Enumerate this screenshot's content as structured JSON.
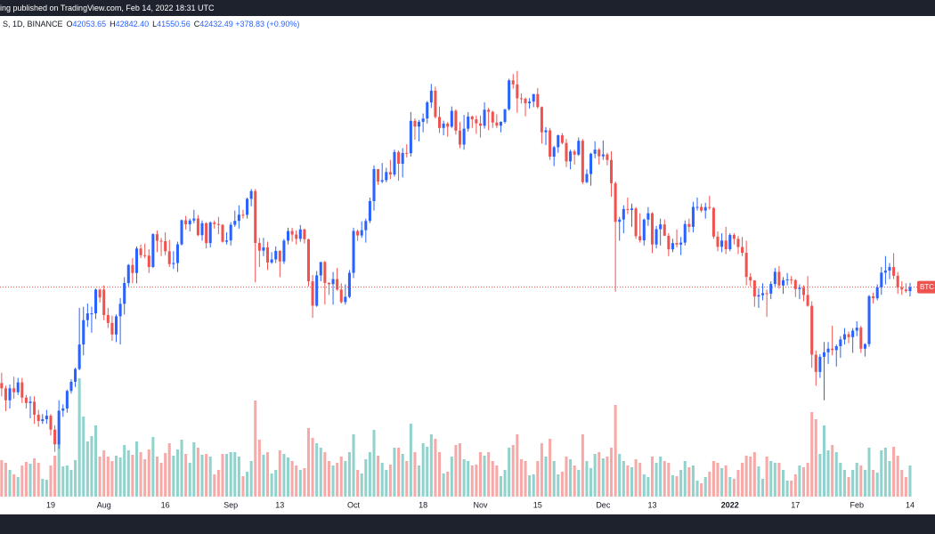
{
  "chart_data": {
    "type": "candlestick",
    "header_text": "ing published on TradingView.com, Feb 14, 2022 18:31 UTC",
    "symbol_text": "S, 1D, BINANCE",
    "ohlc": [
      {
        "key": "O",
        "text": "42053.65"
      },
      {
        "key": "H",
        "text": "42842.40"
      },
      {
        "key": "L",
        "text": "41550.56"
      },
      {
        "key": "C",
        "text": "42432.49"
      }
    ],
    "change_text": "+378.83 (+0.90%)",
    "price_label": "BTC",
    "up_color": "#2962ff",
    "down_color": "#ef5350",
    "volume_up_color": "rgba(38,166,154,0.5)",
    "volume_down_color": "rgba(239,83,80,0.5)",
    "log_scale": true,
    "xlim": [
      -0.4,
      228.1
    ],
    "ylim": [
      25000,
      75000
    ],
    "volume_lim": [
      0,
      520000
    ],
    "xticks": [
      {
        "value": 12,
        "label": "19"
      },
      {
        "value": 25,
        "label": "Aug"
      },
      {
        "value": 40,
        "label": "16"
      },
      {
        "value": 56,
        "label": "Sep"
      },
      {
        "value": 68,
        "label": "13"
      },
      {
        "value": 86,
        "label": "Oct"
      },
      {
        "value": 103,
        "label": "18"
      },
      {
        "value": 117,
        "label": "Nov"
      },
      {
        "value": 131,
        "label": "15"
      },
      {
        "value": 147,
        "label": "Dec"
      },
      {
        "value": 159,
        "label": "13"
      },
      {
        "value": 178,
        "label": "2022"
      },
      {
        "value": 194,
        "label": "17"
      },
      {
        "value": 209,
        "label": "Feb"
      },
      {
        "value": 222,
        "label": "14"
      }
    ],
    "open": [
      34200,
      33800,
      32900,
      33800,
      33500,
      34250,
      33100,
      32700,
      32800,
      31850,
      31400,
      31530,
      31780,
      30800,
      29800,
      32140,
      32300,
      33600,
      34300,
      35300,
      37300,
      39400,
      40000,
      40000,
      42200,
      42200,
      39850,
      39150,
      38150,
      39740,
      40870,
      42830,
      44600,
      43800,
      46280,
      45590,
      45550,
      44400,
      47800,
      47100,
      47050,
      45990,
      44690,
      44800,
      46720,
      49320,
      48870,
      49290,
      49510,
      47690,
      48990,
      46850,
      49070,
      48900,
      48810,
      46990,
      47130,
      48820,
      49250,
      49940,
      49920,
      51750,
      52660,
      46860,
      46060,
      46400,
      44850,
      45160,
      46030,
      44960,
      47110,
      48140,
      47760,
      47300,
      48310,
      47260,
      42990,
      40700,
      43570,
      44900,
      42840,
      42720,
      43210,
      42200,
      41030,
      41520,
      43820,
      48140,
      47660,
      48230,
      49240,
      51490,
      55340,
      53800,
      53970,
      54960,
      54660,
      57490,
      56000,
      57370,
      57340,
      61670,
      60880,
      61530,
      62000,
      64280,
      66000,
      62210,
      60690,
      61290,
      60860,
      63080,
      60330,
      58460,
      60590,
      62270,
      61890,
      61320,
      61000,
      63230,
      62940,
      61440,
      61010,
      61530,
      63310,
      67550,
      66940,
      64880,
      64810,
      64150,
      64400,
      65500,
      63620,
      60110,
      60370,
      56900,
      58120,
      59700,
      58680,
      56300,
      57570,
      57160,
      58960,
      53730,
      54720,
      57270,
      57800,
      56950,
      57180,
      56480,
      53600,
      49150,
      49400,
      50580,
      50470,
      50640,
      47590,
      47140,
      49390,
      50100,
      46700,
      48340,
      48860,
      47630,
      46200,
      46850,
      46690,
      46900,
      48900,
      48590,
      50820,
      50820,
      50400,
      50800,
      50700,
      47540,
      46460,
      47120,
      46210,
      47720,
      47300,
      46440,
      45830,
      43420,
      43080,
      41550,
      41670,
      41860,
      41820,
      42740,
      43920,
      42590,
      43100,
      43180,
      43110,
      42250,
      42380,
      41690,
      40690,
      36450,
      35070,
      36280,
      36650,
      36950,
      36830,
      37160,
      37720,
      38170,
      37920,
      38480,
      38740,
      36950,
      37330,
      41570,
      41380,
      42410,
      43840,
      44040,
      44390,
      43530,
      42390,
      42210,
      42053.65
    ],
    "high": [
      35000,
      34000,
      34100,
      34700,
      34600,
      34600,
      33300,
      33200,
      33200,
      32200,
      31900,
      32200,
      31900,
      31100,
      32900,
      32600,
      33700,
      34500,
      35400,
      40500,
      40600,
      40900,
      40600,
      42300,
      42300,
      42600,
      40500,
      39800,
      39900,
      41400,
      43400,
      44700,
      45300,
      46500,
      46700,
      46800,
      46200,
      47900,
      48200,
      47400,
      48000,
      47200,
      46000,
      47000,
      49400,
      49800,
      49500,
      50500,
      49900,
      49300,
      49100,
      49200,
      49300,
      49700,
      48900,
      48000,
      49100,
      50400,
      51000,
      50500,
      51900,
      52900,
      52900,
      47400,
      47400,
      47000,
      45900,
      46500,
      46100,
      47300,
      48500,
      48500,
      48200,
      48800,
      48400,
      47300,
      43600,
      44000,
      44900,
      45000,
      42900,
      43900,
      44300,
      42800,
      42700,
      44100,
      48500,
      48300,
      49200,
      49500,
      51900,
      55800,
      55300,
      56100,
      55500,
      56500,
      57800,
      57700,
      58000,
      58500,
      62900,
      62000,
      61800,
      62700,
      64500,
      67000,
      66600,
      63700,
      61700,
      61500,
      63700,
      63300,
      61500,
      62500,
      62900,
      62400,
      62400,
      62400,
      64300,
      63500,
      63100,
      62600,
      61600,
      63300,
      67800,
      68500,
      69000,
      65600,
      65000,
      64900,
      65500,
      66400,
      63700,
      60800,
      60700,
      58300,
      59800,
      60000,
      59200,
      57800,
      57800,
      59400,
      59200,
      55300,
      57400,
      58900,
      58000,
      59000,
      57400,
      57600,
      53800,
      49700,
      51000,
      51900,
      51200,
      50800,
      50100,
      49500,
      50800,
      50200,
      48700,
      49500,
      49400,
      47900,
      47300,
      48300,
      47500,
      49300,
      49500,
      51400,
      51900,
      51200,
      51300,
      52100,
      50800,
      48100,
      47900,
      48600,
      47900,
      47900,
      47600,
      47500,
      47100,
      43800,
      43100,
      42300,
      42800,
      42200,
      43000,
      44300,
      44500,
      43400,
      43800,
      43500,
      43200,
      42700,
      42600,
      43500,
      41100,
      36800,
      36500,
      37500,
      37500,
      38900,
      37300,
      38000,
      38700,
      38400,
      38700,
      39300,
      38900,
      37400,
      41700,
      41900,
      42700,
      44400,
      45500,
      44800,
      45800,
      43900,
      43000,
      42800,
      42842.4
    ],
    "low": [
      33200,
      32100,
      32300,
      33000,
      33300,
      32700,
      32300,
      31600,
      31200,
      31000,
      31200,
      31200,
      30400,
      29300,
      29500,
      31700,
      32000,
      33400,
      33900,
      35200,
      36400,
      38800,
      38300,
      39500,
      41000,
      39400,
      38700,
      37600,
      37500,
      37300,
      39900,
      42500,
      42800,
      42800,
      45300,
      45300,
      43800,
      44300,
      45900,
      45500,
      45600,
      44400,
      44200,
      43900,
      46600,
      48300,
      48100,
      49000,
      47600,
      47100,
      46300,
      46400,
      48400,
      47800,
      46900,
      46700,
      46600,
      48600,
      48400,
      49500,
      49500,
      50900,
      42900,
      44400,
      45500,
      44100,
      44700,
      44800,
      43400,
      44700,
      46700,
      47000,
      46700,
      47000,
      46800,
      42500,
      39600,
      40600,
      43000,
      40800,
      41700,
      40800,
      42100,
      40900,
      40800,
      41400,
      43300,
      47100,
      47400,
      46900,
      49000,
      50400,
      53400,
      53600,
      53700,
      54100,
      54400,
      53900,
      54300,
      56800,
      56900,
      59100,
      58900,
      60100,
      61300,
      63500,
      62000,
      60000,
      59700,
      59500,
      60700,
      59800,
      58000,
      57800,
      60200,
      60700,
      59900,
      59400,
      60600,
      60400,
      60700,
      60700,
      60100,
      61300,
      63100,
      66300,
      62800,
      64100,
      62300,
      63400,
      63600,
      63400,
      58600,
      58400,
      56500,
      55700,
      57400,
      58500,
      55600,
      55300,
      55900,
      57000,
      53500,
      53600,
      53300,
      56700,
      55900,
      56500,
      55800,
      52000,
      42000,
      47100,
      47900,
      50000,
      48600,
      47300,
      46900,
      46600,
      48700,
      45800,
      46300,
      46600,
      47600,
      45500,
      45900,
      46400,
      45600,
      46600,
      48000,
      48000,
      50400,
      50200,
      49500,
      50500,
      47300,
      46000,
      45900,
      45700,
      46000,
      46700,
      45700,
      45500,
      42600,
      42500,
      40600,
      40500,
      41200,
      39700,
      41300,
      42500,
      42300,
      41800,
      42600,
      42700,
      41500,
      41300,
      41100,
      40600,
      35400,
      34000,
      34600,
      32900,
      35700,
      36400,
      35500,
      36200,
      37300,
      37400,
      36600,
      38000,
      36600,
      36300,
      37100,
      40900,
      41200,
      41700,
      42700,
      43200,
      43200,
      41800,
      41700,
      41900,
      41550.56
    ],
    "close": [
      33800,
      32900,
      33800,
      33500,
      34250,
      33100,
      32700,
      32800,
      31850,
      31400,
      31530,
      31780,
      30800,
      29800,
      32140,
      32300,
      33600,
      34300,
      35300,
      37300,
      39400,
      40000,
      40000,
      42200,
      41460,
      39850,
      39150,
      38150,
      39740,
      40870,
      42830,
      44600,
      43800,
      46280,
      45590,
      45550,
      44400,
      47800,
      47100,
      47050,
      45990,
      44690,
      44800,
      46720,
      49320,
      48870,
      49290,
      49510,
      47690,
      48990,
      46850,
      49070,
      48900,
      48810,
      46990,
      47130,
      48820,
      49250,
      49940,
      49920,
      51750,
      52660,
      46860,
      46060,
      46400,
      44850,
      45160,
      46030,
      44960,
      47110,
      48140,
      47760,
      47300,
      48310,
      47260,
      42990,
      40700,
      43570,
      44900,
      42840,
      42720,
      43210,
      42200,
      41030,
      41520,
      43820,
      48140,
      47660,
      48230,
      49240,
      51490,
      55340,
      53800,
      53970,
      54960,
      54660,
      57490,
      56000,
      57370,
      57340,
      61670,
      60880,
      61530,
      62000,
      64280,
      66000,
      62210,
      60690,
      61290,
      60860,
      63080,
      60330,
      58460,
      60590,
      62270,
      61890,
      61320,
      61000,
      63230,
      62940,
      61440,
      61010,
      61530,
      63310,
      67550,
      66940,
      64880,
      64810,
      64150,
      64400,
      65500,
      63620,
      60110,
      60370,
      56900,
      58120,
      59700,
      58680,
      56300,
      57570,
      57160,
      58960,
      53730,
      54720,
      57270,
      57800,
      56950,
      57180,
      56480,
      53600,
      49150,
      49400,
      50580,
      50470,
      50640,
      47590,
      47140,
      49390,
      50100,
      46700,
      48340,
      48860,
      47630,
      46200,
      46850,
      46690,
      46900,
      48900,
      48590,
      50820,
      50820,
      50400,
      50800,
      50700,
      47540,
      46460,
      47120,
      46210,
      47720,
      47300,
      46440,
      45830,
      43420,
      43080,
      41550,
      41670,
      41860,
      41820,
      42740,
      43920,
      42590,
      43100,
      43180,
      43110,
      42250,
      42380,
      41690,
      40690,
      36450,
      35070,
      36280,
      36650,
      36950,
      36830,
      37160,
      37720,
      38170,
      37920,
      38480,
      38740,
      36950,
      37330,
      41570,
      41380,
      42410,
      43840,
      44040,
      44390,
      43530,
      42390,
      42210,
      42053.65,
      42432.49
    ],
    "volume": [
      41000,
      38000,
      30000,
      25000,
      22000,
      35000,
      39000,
      37000,
      43000,
      38000,
      20000,
      19000,
      35000,
      46000,
      60000,
      34000,
      35000,
      30000,
      41000,
      133000,
      90000,
      62000,
      68000,
      80000,
      45000,
      52000,
      45000,
      40000,
      46000,
      44000,
      58000,
      52000,
      47000,
      62000,
      50000,
      42000,
      53000,
      67000,
      45000,
      38000,
      49000,
      60000,
      46000,
      53000,
      64000,
      48000,
      38000,
      61000,
      55000,
      47000,
      48000,
      45000,
      25000,
      30000,
      48000,
      48000,
      50000,
      50000,
      45000,
      23000,
      28000,
      40000,
      108000,
      64000,
      47000,
      50000,
      26000,
      30000,
      52000,
      48000,
      44000,
      40000,
      35000,
      30000,
      32000,
      77000,
      66000,
      60000,
      55000,
      50000,
      40000,
      35000,
      38000,
      45000,
      40000,
      50000,
      70000,
      30000,
      26000,
      42000,
      50000,
      75000,
      46000,
      38000,
      30000,
      36000,
      55000,
      55000,
      48000,
      40000,
      82000,
      50000,
      35000,
      60000,
      56000,
      70000,
      65000,
      50000,
      26000,
      28000,
      45000,
      58000,
      60000,
      42000,
      40000,
      35000,
      36000,
      50000,
      46000,
      50000,
      40000,
      35000,
      23000,
      30000,
      55000,
      58000,
      70000,
      42000,
      40000,
      24000,
      25000,
      40000,
      60000,
      45000,
      65000,
      40000,
      25000,
      28000,
      45000,
      42000,
      35000,
      30000,
      70000,
      40000,
      32000,
      48000,
      50000,
      43000,
      45000,
      55000,
      103000,
      48000,
      40000,
      35000,
      33000,
      42000,
      38000,
      25000,
      22000,
      45000,
      38000,
      45000,
      40000,
      38000,
      24000,
      23000,
      30000,
      40000,
      33000,
      35000,
      18000,
      15000,
      22000,
      28000,
      40000,
      38000,
      32000,
      35000,
      22000,
      20000,
      30000,
      38000,
      46000,
      45000,
      50000,
      34000,
      20000,
      45000,
      40000,
      38000,
      38000,
      30000,
      18000,
      18000,
      25000,
      35000,
      33000,
      38000,
      95000,
      87000,
      48000,
      80000,
      52000,
      58000,
      50000,
      38000,
      30000,
      22000,
      30000,
      38000,
      35000,
      30000,
      55000,
      30000,
      27000,
      52000,
      55000,
      40000,
      56000,
      46000,
      30000,
      22000,
      35000
    ]
  }
}
